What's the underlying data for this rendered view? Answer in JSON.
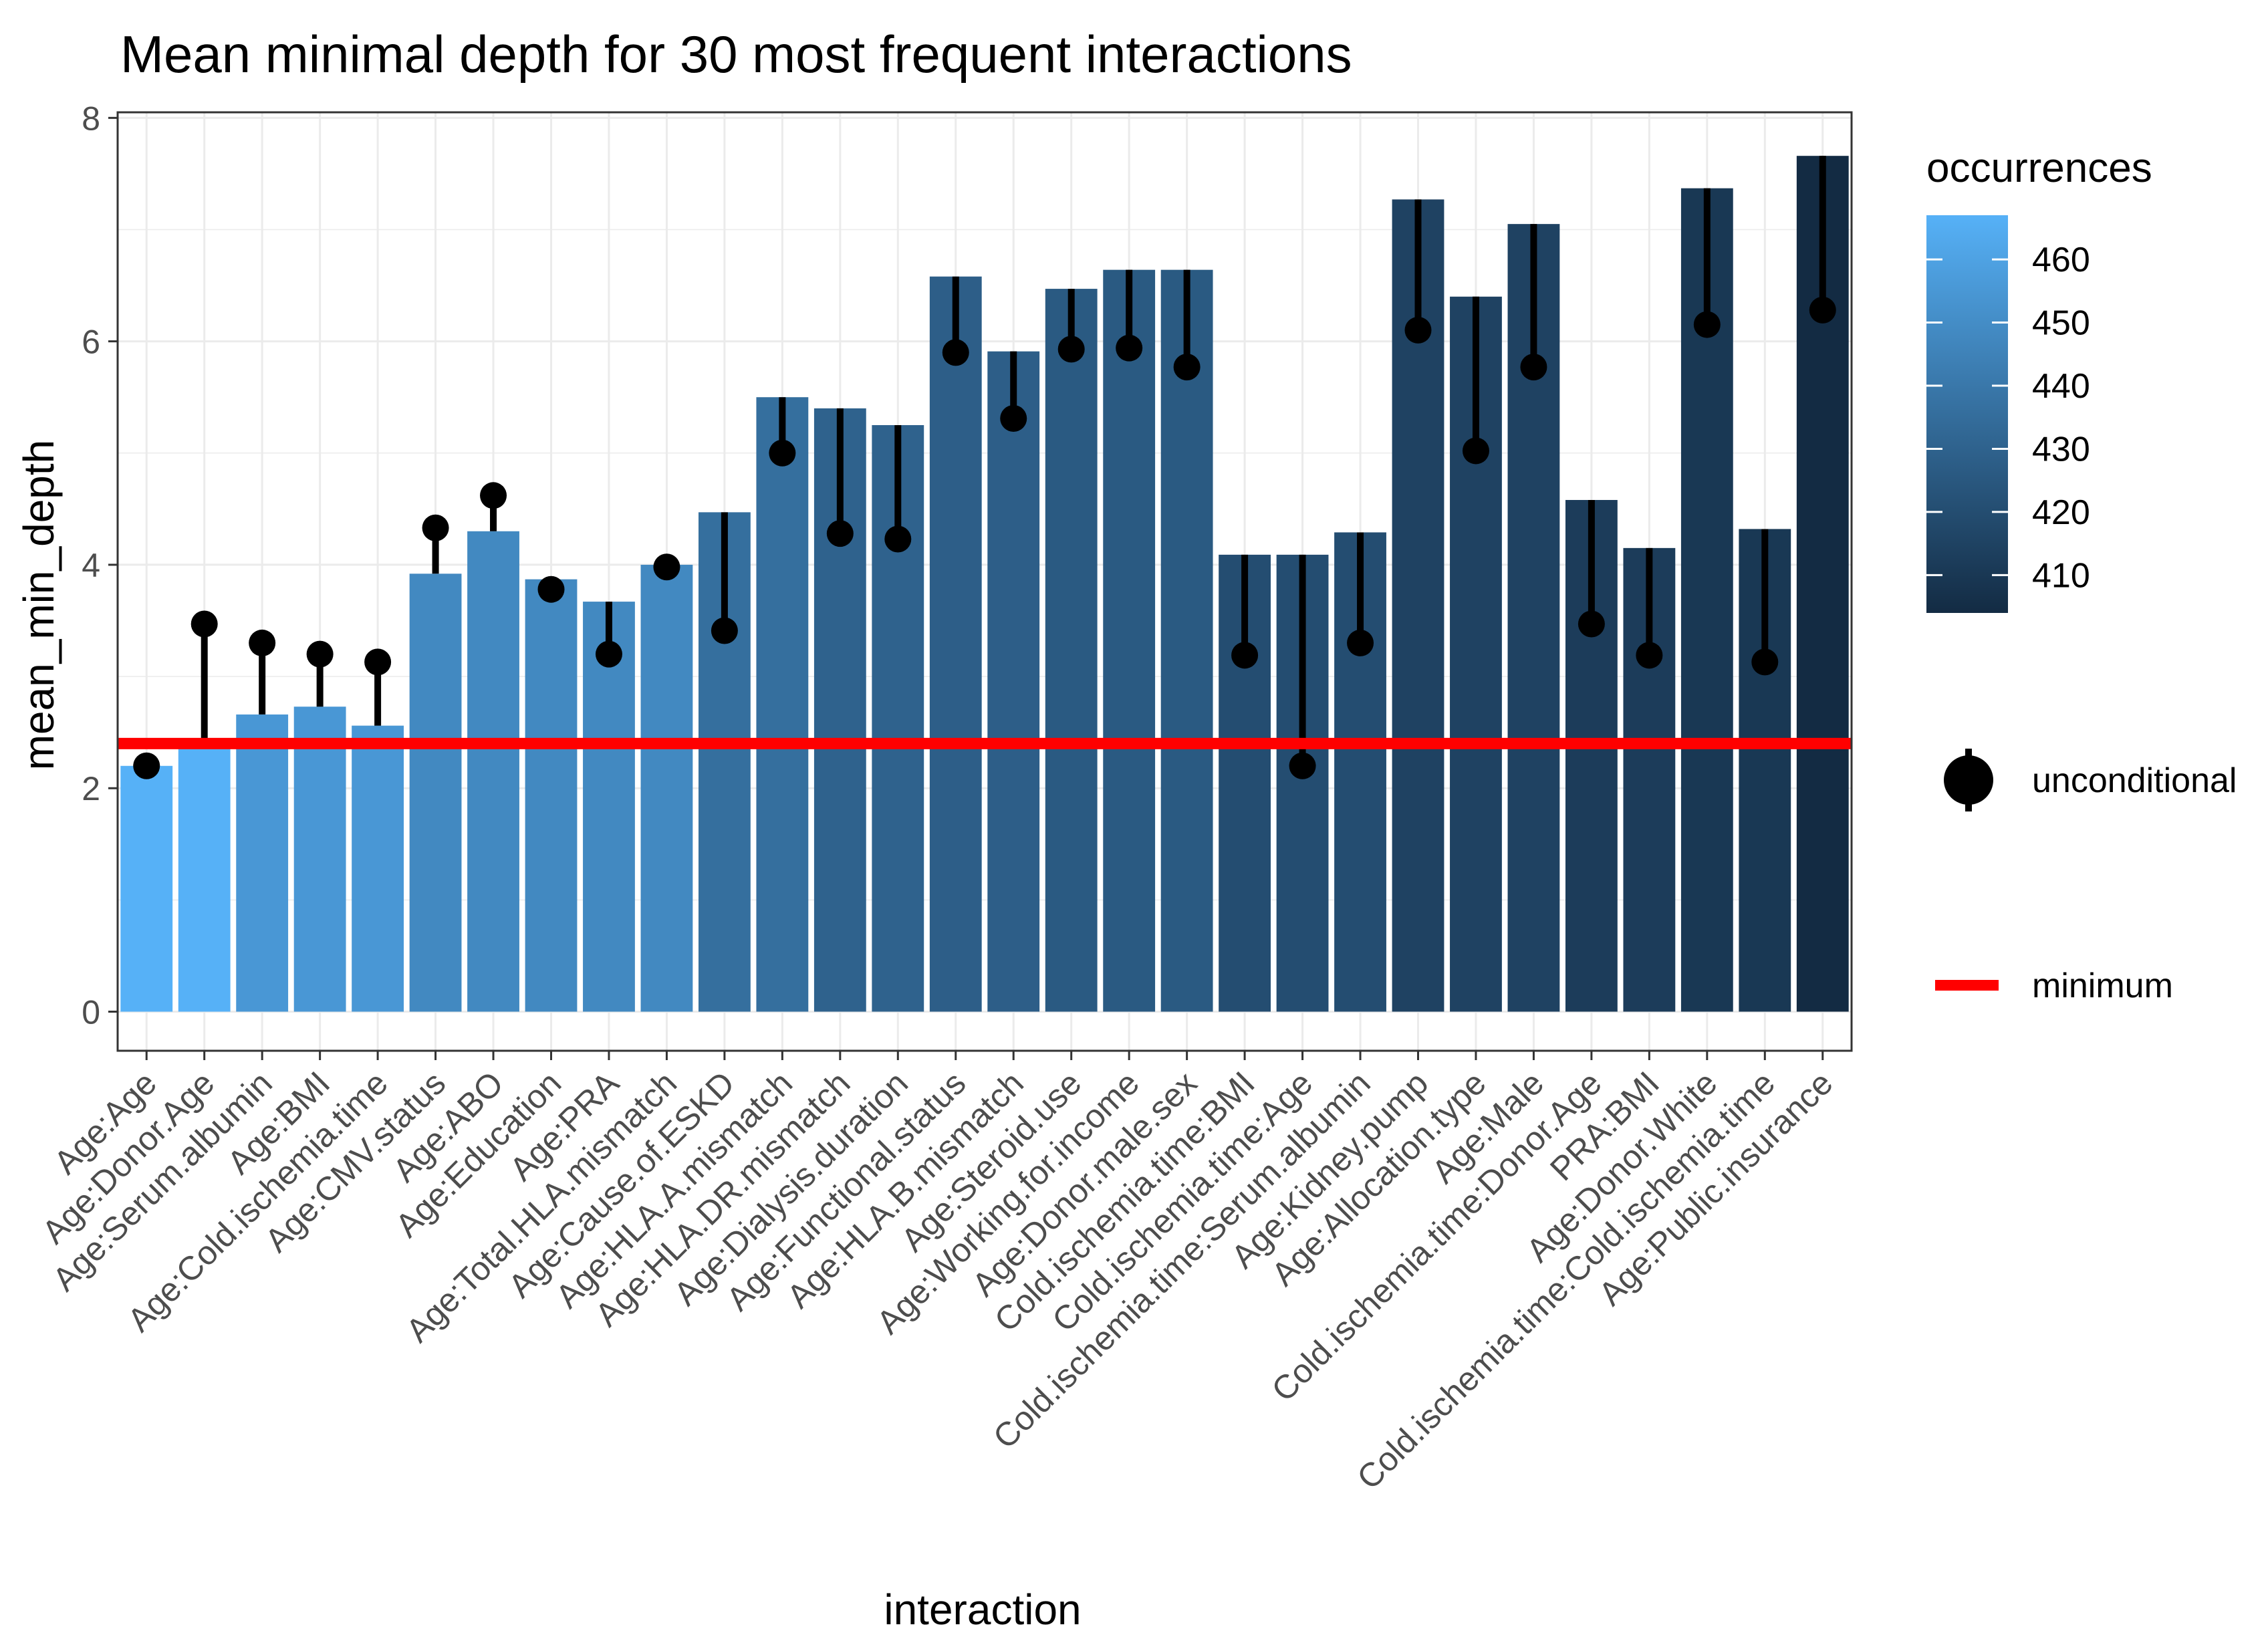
{
  "chart_data": {
    "type": "bar",
    "title": "Mean minimal depth for 30 most frequent interactions",
    "xlabel": "interaction",
    "ylabel": "mean_min_depth",
    "ylim": [
      -0.35,
      8.05
    ],
    "yticks": [
      0,
      2,
      4,
      6,
      8
    ],
    "categories": [
      "Age:Age",
      "Age:Donor.Age",
      "Age:Serum.albumin",
      "Age:BMI",
      "Age:Cold.ischemia.time",
      "Age:CMV.status",
      "Age:ABO",
      "Age:Education",
      "Age:PRA",
      "Age:Total.HLA.mismatch",
      "Age:Cause.of.ESKD",
      "Age:HLA.A.mismatch",
      "Age:HLA.DR.mismatch",
      "Age:Dialysis.duration",
      "Age:Functional.status",
      "Age:HLA.B.mismatch",
      "Age:Steroid.use",
      "Age:Working.for.income",
      "Age:Donor.male.sex",
      "Cold.ischemia.time:BMI",
      "Cold.ischemia.time:Age",
      "Cold.ischemia.time:Serum.albumin",
      "Age:Kidney.pump",
      "Age:Allocation.type",
      "Age:Male",
      "Cold.ischemia.time:Donor.Age",
      "PRA:BMI",
      "Age:Donor.White",
      "Cold.ischemia.time:Cold.ischemia.time",
      "Age:Public.insurance"
    ],
    "series": [
      {
        "name": "mean_min_depth",
        "values": [
          2.2,
          2.42,
          2.66,
          2.73,
          2.56,
          3.92,
          4.3,
          3.87,
          3.67,
          4.0,
          4.47,
          5.5,
          5.4,
          5.25,
          6.58,
          5.91,
          6.47,
          6.64,
          6.64,
          4.09,
          4.09,
          4.29,
          7.27,
          6.4,
          7.05,
          4.58,
          4.15,
          7.37,
          4.32,
          7.66
        ]
      },
      {
        "name": "unconditional",
        "values": [
          2.2,
          3.47,
          3.3,
          3.2,
          3.13,
          4.33,
          4.62,
          3.78,
          3.2,
          3.98,
          3.41,
          5.0,
          4.28,
          4.23,
          5.9,
          5.31,
          5.93,
          5.94,
          5.77,
          3.19,
          2.2,
          3.3,
          6.1,
          5.02,
          5.77,
          3.47,
          3.19,
          6.15,
          3.13,
          6.28
        ]
      },
      {
        "name": "occurrences",
        "values": [
          467,
          467,
          455,
          455,
          455,
          448,
          448,
          448,
          448,
          448,
          436,
          436,
          430,
          430,
          428,
          428,
          426,
          426,
          426,
          420,
          420,
          420,
          415,
          415,
          415,
          412,
          412,
          410,
          410,
          404
        ]
      }
    ],
    "minimum_line": 2.4,
    "legend": {
      "color_title": "occurrences",
      "color_ticks": [
        460,
        450,
        440,
        430,
        420,
        410
      ],
      "color_range": [
        404,
        467
      ],
      "unconditional_label": "unconditional",
      "minimum_label": "minimum",
      "position": "right"
    },
    "colors": {
      "low": "#132B43",
      "high": "#56B1F7",
      "minimum_line": "#ff0000",
      "points": "#000000",
      "grid": "#ebebeb"
    }
  }
}
